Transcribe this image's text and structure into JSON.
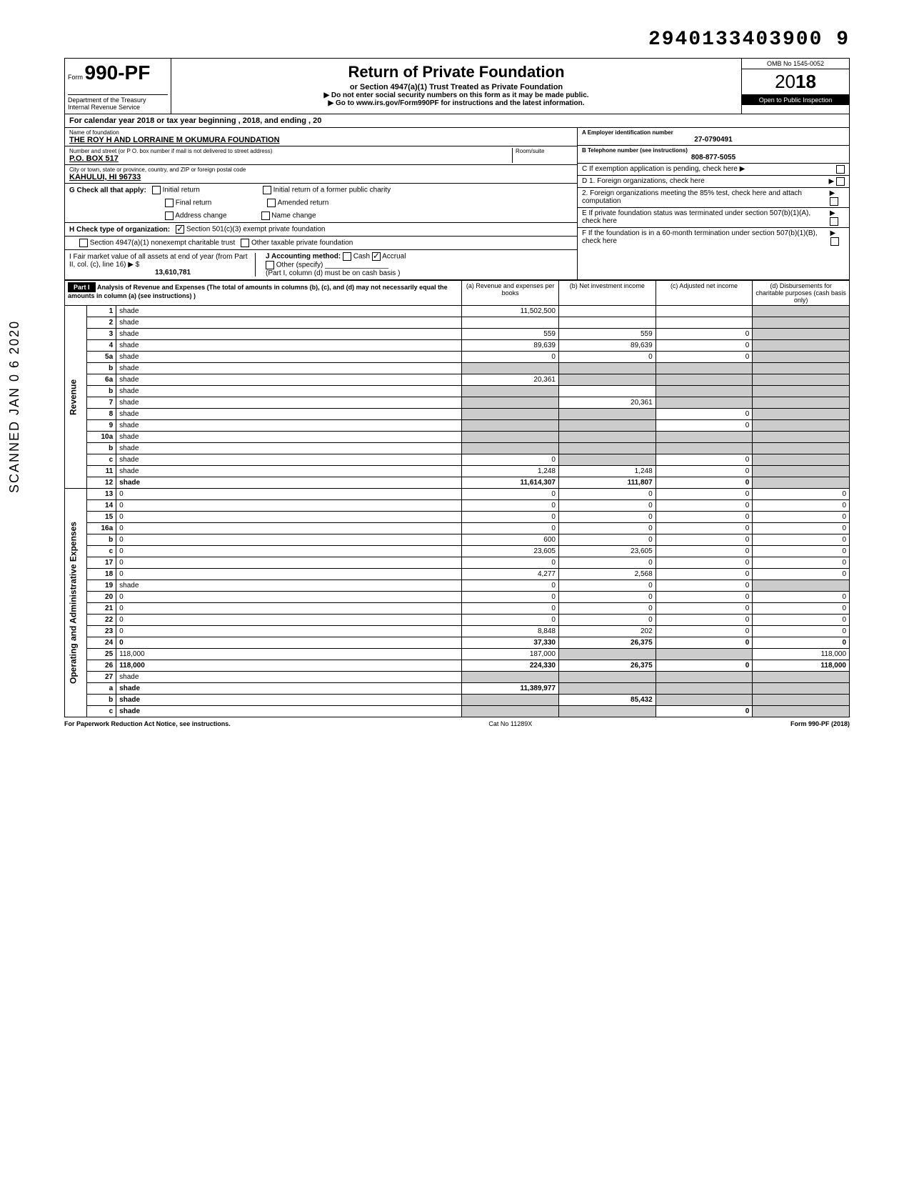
{
  "doc_number": "2940133403900 9",
  "form": {
    "prefix": "Form",
    "number": "990-PF",
    "dept": "Department of the Treasury",
    "irs": "Internal Revenue Service"
  },
  "title": "Return of Private Foundation",
  "subtitle": "or Section 4947(a)(1) Trust Treated as Private Foundation",
  "warn": "▶ Do not enter social security numbers on this form as it may be made public.",
  "goto": "▶ Go to www.irs.gov/Form990PF for instructions and the latest information.",
  "omb": "OMB No 1545-0052",
  "year": "2018",
  "inspect": "Open to Public Inspection",
  "cal_year": "For calendar year 2018 or tax year beginning                              , 2018, and ending                         , 20",
  "name_label": "Name of foundation",
  "name": "THE ROY H AND LORRAINE M OKUMURA FOUNDATION",
  "addr_label": "Number and street (or P O. box number if mail is not delivered to street address)",
  "addr": "P.O. BOX 517",
  "room_label": "Room/suite",
  "city_label": "City or town, state or province, country, and ZIP or foreign postal code",
  "city": "KAHULUI, HI 96733",
  "ein_label": "A  Employer identification number",
  "ein": "27-0790491",
  "tel_label": "B  Telephone number (see instructions)",
  "tel": "808-877-5055",
  "c_label": "C  If exemption application is pending, check here ▶",
  "d1": "D  1. Foreign organizations, check here",
  "d2": "2. Foreign organizations meeting the 85% test, check here and attach computation",
  "e_label": "E  If private foundation status was terminated under section 507(b)(1)(A), check here",
  "f_label": "F  If the foundation is in a 60-month termination under section 507(b)(1)(B), check here",
  "g_label": "G  Check all that apply:",
  "g_opts": [
    "Initial return",
    "Final return",
    "Address change",
    "Initial return of a former public charity",
    "Amended return",
    "Name change"
  ],
  "h_label": "H  Check type of organization:",
  "h_opts": [
    "Section 501(c)(3) exempt private foundation",
    "Section 4947(a)(1) nonexempt charitable trust",
    "Other taxable private foundation"
  ],
  "i_label": "I   Fair market value of all assets at end of year  (from Part II, col. (c), line 16) ▶ $",
  "i_value": "13,610,781",
  "j_label": "J  Accounting method:",
  "j_opts": [
    "Cash",
    "Accrual"
  ],
  "j_other": "Other (specify)",
  "j_note": "(Part I, column (d) must be on cash basis )",
  "part1_title": "Analysis of Revenue and Expenses (The total of amounts in columns (b), (c), and (d) may not necessarily equal the amounts in column (a) (see instructions) )",
  "cols": {
    "a": "(a) Revenue and expenses per books",
    "b": "(b) Net investment income",
    "c": "(c) Adjusted net income",
    "d": "(d) Disbursements for charitable purposes (cash basis only)"
  },
  "side_rev": "Revenue",
  "side_exp": "Operating and Administrative Expenses",
  "rows": [
    {
      "n": "1",
      "d": "shade",
      "a": "11,502,500",
      "b": "",
      "c": ""
    },
    {
      "n": "2",
      "d": "shade",
      "a": "",
      "b": "",
      "c": ""
    },
    {
      "n": "3",
      "d": "shade",
      "a": "559",
      "b": "559",
      "c": "0"
    },
    {
      "n": "4",
      "d": "shade",
      "a": "89,639",
      "b": "89,639",
      "c": "0"
    },
    {
      "n": "5a",
      "d": "shade",
      "a": "0",
      "b": "0",
      "c": "0"
    },
    {
      "n": "b",
      "d": "shade",
      "a": "shade",
      "b": "shade",
      "c": "shade"
    },
    {
      "n": "6a",
      "d": "shade",
      "a": "20,361",
      "b": "shade",
      "c": "shade"
    },
    {
      "n": "b",
      "d": "shade",
      "a": "shade",
      "b": "",
      "c": "shade"
    },
    {
      "n": "7",
      "d": "shade",
      "a": "shade",
      "b": "20,361",
      "c": "shade"
    },
    {
      "n": "8",
      "d": "shade",
      "a": "shade",
      "b": "shade",
      "c": "0"
    },
    {
      "n": "9",
      "d": "shade",
      "a": "shade",
      "b": "shade",
      "c": "0"
    },
    {
      "n": "10a",
      "d": "shade",
      "a": "shade",
      "b": "shade",
      "c": "shade"
    },
    {
      "n": "b",
      "d": "shade",
      "a": "shade",
      "b": "shade",
      "c": "shade"
    },
    {
      "n": "c",
      "d": "shade",
      "a": "0",
      "b": "shade",
      "c": "0"
    },
    {
      "n": "11",
      "d": "shade",
      "a": "1,248",
      "b": "1,248",
      "c": "0"
    },
    {
      "n": "12",
      "d": "shade",
      "a": "11,614,307",
      "b": "111,807",
      "c": "0",
      "bold": true
    },
    {
      "n": "13",
      "d": "0",
      "a": "0",
      "b": "0",
      "c": "0"
    },
    {
      "n": "14",
      "d": "0",
      "a": "0",
      "b": "0",
      "c": "0"
    },
    {
      "n": "15",
      "d": "0",
      "a": "0",
      "b": "0",
      "c": "0"
    },
    {
      "n": "16a",
      "d": "0",
      "a": "0",
      "b": "0",
      "c": "0"
    },
    {
      "n": "b",
      "d": "0",
      "a": "600",
      "b": "0",
      "c": "0"
    },
    {
      "n": "c",
      "d": "0",
      "a": "23,605",
      "b": "23,605",
      "c": "0"
    },
    {
      "n": "17",
      "d": "0",
      "a": "0",
      "b": "0",
      "c": "0"
    },
    {
      "n": "18",
      "d": "0",
      "a": "4,277",
      "b": "2,568",
      "c": "0"
    },
    {
      "n": "19",
      "d": "shade",
      "a": "0",
      "b": "0",
      "c": "0"
    },
    {
      "n": "20",
      "d": "0",
      "a": "0",
      "b": "0",
      "c": "0"
    },
    {
      "n": "21",
      "d": "0",
      "a": "0",
      "b": "0",
      "c": "0"
    },
    {
      "n": "22",
      "d": "0",
      "a": "0",
      "b": "0",
      "c": "0"
    },
    {
      "n": "23",
      "d": "0",
      "a": "8,848",
      "b": "202",
      "c": "0"
    },
    {
      "n": "24",
      "d": "0",
      "a": "37,330",
      "b": "26,375",
      "c": "0",
      "bold": true
    },
    {
      "n": "25",
      "d": "118,000",
      "a": "187,000",
      "b": "shade",
      "c": "shade"
    },
    {
      "n": "26",
      "d": "118,000",
      "a": "224,330",
      "b": "26,375",
      "c": "0",
      "bold": true
    },
    {
      "n": "27",
      "d": "shade",
      "a": "shade",
      "b": "shade",
      "c": "shade"
    },
    {
      "n": "a",
      "d": "shade",
      "a": "11,389,977",
      "b": "shade",
      "c": "shade",
      "bold": true
    },
    {
      "n": "b",
      "d": "shade",
      "a": "shade",
      "b": "85,432",
      "c": "shade",
      "bold": true
    },
    {
      "n": "c",
      "d": "shade",
      "a": "shade",
      "b": "shade",
      "c": "0",
      "bold": true
    }
  ],
  "scanned": "SCANNED JAN 0 6 2020",
  "footer_l": "For Paperwork Reduction Act Notice, see instructions.",
  "footer_c": "Cat No 11289X",
  "footer_r": "Form 990-PF (2018)"
}
